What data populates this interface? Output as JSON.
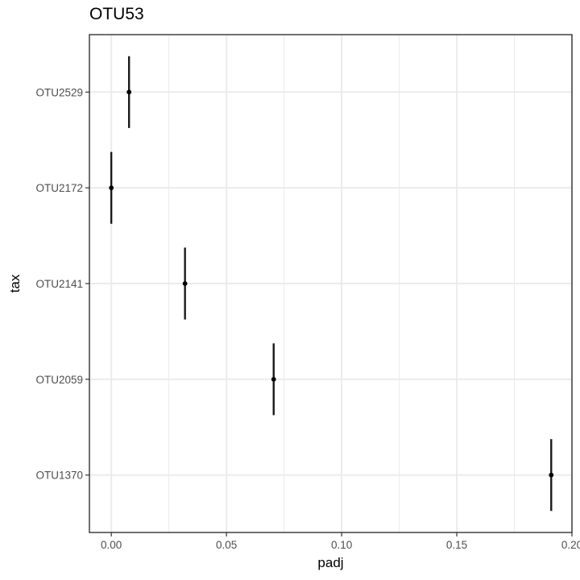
{
  "colors": {
    "background": "#ffffff",
    "grid": "#ebebeb",
    "panel_border": "#333333",
    "tick_label": "#4d4d4d",
    "point": "#000000",
    "errorbar": "#1a1a1a"
  },
  "chart_data": {
    "type": "scatter",
    "title": "OTU53",
    "xlabel": "padj",
    "ylabel": "tax",
    "xlim": [
      -0.0095,
      0.2
    ],
    "x_ticks": [
      0.0,
      0.05,
      0.1,
      0.15,
      0.2
    ],
    "x_tick_labels": [
      "0.00",
      "0.05",
      "0.10",
      "0.15",
      "0.20"
    ],
    "categories": [
      "OTU2529",
      "OTU2172",
      "OTU2141",
      "OTU2059",
      "OTU1370"
    ],
    "grid": true,
    "theme": "bw",
    "series": [
      {
        "points": [
          {
            "tax": "OTU2529",
            "padj": 0.0077
          },
          {
            "tax": "OTU2172",
            "padj": 0.0
          },
          {
            "tax": "OTU2141",
            "padj": 0.032
          },
          {
            "tax": "OTU2059",
            "padj": 0.0705
          },
          {
            "tax": "OTU1370",
            "padj": 0.191
          }
        ],
        "errorbar_half_width_categories": 0.375
      }
    ]
  }
}
